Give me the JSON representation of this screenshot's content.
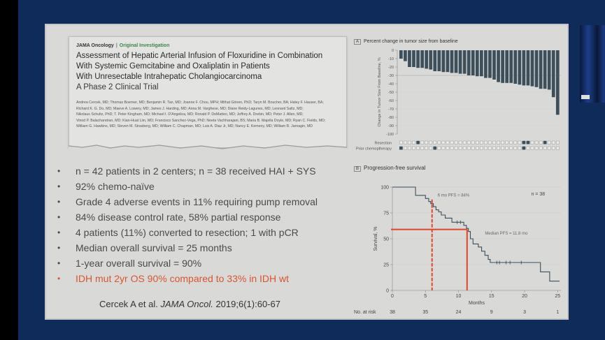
{
  "article": {
    "journal": "JAMA Oncology",
    "article_type": "Original Investigation",
    "title_lines": [
      "Assessment of Hepatic Arterial Infusion of Floxuridine in Combination",
      "With Systemic Gemcitabine and Oxaliplatin in Patients",
      "With Unresectable Intrahepatic Cholangiocarcinoma"
    ],
    "subtitle": "A Phase 2 Clinical Trial",
    "authors_lines": [
      "Andrea Cercek, MD; Thomas Boerner, MD; Benjamin R. Tan, MD; Joanne F. Chou, MPH; Mithat Gönen, PhD; Taryn M. Boucher, BA; Haley F. Hauser, BA;",
      "Richard K. G. Do, MD; Maeve A. Lowery, MD; James J. Harding, MD; Anna M. Varghese, MD; Diane Reidy-Lagunes, MD; Leonard Saltz, MD;",
      "Nikolaus Schultz, PhD; T. Peter Kingham, MD; Michael I. D'Angelica, MD; Ronald P. DeMatteo, MD; Jeffrey A. Drebin, MD; Peter J. Allen, MD;",
      "Vinod P. Balachandran, MD; Kian-Huat Lim, MD; Francisco Sanchez-Vega, PhD; Neeta Vachharajani, BS; Maria B. Majella Doyle, MD; Ryan C. Fields, MD;",
      "William G. Hawkins, MD; Steven M. Strasberg, MD; William C. Chapman, MD; Luis A. Diaz Jr, MD; Nancy E. Kemeny, MD; William R. Jarnagin, MD"
    ]
  },
  "bullets": [
    {
      "text": "n = 42 patients in 2 centers; n = 38 received HAI + SYS",
      "highlight": false
    },
    {
      "text": "92% chemo-naïve",
      "highlight": false
    },
    {
      "text": "Grade 4 adverse events in 11% requiring pump removal",
      "highlight": false
    },
    {
      "text": "84% disease control rate, 58% partial response",
      "highlight": false
    },
    {
      "text": "4 patients (11%) converted to resection; 1 with pCR",
      "highlight": false
    },
    {
      "text": "Median overall survival = 25 months",
      "highlight": false
    },
    {
      "text": "1-year overall survival = 90%",
      "highlight": false
    },
    {
      "text": "IDH mut 2yr OS 90% compared to 33% in IDH wt",
      "highlight": true
    }
  ],
  "bullet_glyph": "•",
  "citation": {
    "authors": "Cercek A et al.",
    "journal": "JAMA Oncol.",
    "ref": "2019;6(1):60-67"
  },
  "colors": {
    "highlight": "#d8552e",
    "bar": "#3d4f5a",
    "km_line": "#3d4f5a",
    "annotation_red": "#e0452a",
    "background_blue": "#0e2b5a"
  },
  "chart_data": [
    {
      "type": "bar",
      "panel_label": "A",
      "title": "Percent change in tumor size from baseline",
      "ylabel": "Change in Tumor Size From Baseline, %",
      "ylim": [
        -100,
        0
      ],
      "yticks": [
        0,
        -10,
        -20,
        -30,
        -40,
        -50,
        -60,
        -70,
        -80,
        -90,
        -100
      ],
      "reference_line": -30,
      "values": [
        -10,
        -13,
        -20,
        -20,
        -21,
        -21,
        -22,
        -23,
        -25,
        -25,
        -26,
        -26,
        -27,
        -27,
        -28,
        -28,
        -30,
        -30,
        -31,
        -31,
        -33,
        -33,
        -35,
        -38,
        -39,
        -39,
        -39,
        -40,
        -41,
        -42,
        -42,
        -43,
        -44,
        -46,
        -46,
        -47,
        -56,
        -77
      ],
      "indicator_rows": [
        {
          "label": "Resection",
          "filled": [
            4,
            29,
            30,
            34
          ]
        },
        {
          "label": "Prior chemoptherapy",
          "filled": [
            0,
            8,
            29
          ]
        }
      ]
    },
    {
      "type": "line",
      "panel_label": "B",
      "title": "Progression-free survival",
      "xlabel": "Months",
      "ylabel": "Survival, %",
      "xlim": [
        0,
        25.5
      ],
      "ylim": [
        0,
        100
      ],
      "xticks": [
        0,
        5,
        10,
        15,
        20,
        25
      ],
      "yticks": [
        0,
        25,
        50,
        75,
        100
      ],
      "n_label": "n = 38",
      "series": [
        {
          "name": "PFS",
          "x": [
            0,
            3.5,
            3.5,
            5.0,
            5.0,
            5.5,
            5.5,
            5.8,
            5.8,
            6.2,
            6.2,
            6.6,
            6.6,
            7.0,
            7.0,
            7.4,
            7.4,
            8.0,
            8.0,
            9.0,
            9.0,
            10.8,
            10.8,
            11.2,
            11.2,
            11.5,
            11.5,
            11.8,
            11.8,
            12.2,
            12.2,
            13.0,
            13.0,
            13.5,
            13.5,
            14.0,
            14.0,
            14.5,
            14.5,
            14.8,
            14.8,
            22.4,
            22.4,
            23.8,
            23.8,
            25.3
          ],
          "y": [
            100,
            100,
            92,
            92,
            89,
            89,
            86,
            86,
            84,
            84,
            81,
            81,
            78,
            78,
            76,
            76,
            73,
            73,
            70,
            70,
            66,
            66,
            63,
            63,
            60,
            60,
            57,
            57,
            50,
            50,
            45,
            45,
            42,
            42,
            38,
            38,
            34,
            34,
            30,
            30,
            27,
            27,
            18,
            18,
            9,
            9
          ]
        }
      ],
      "censor_marks": [
        {
          "x": 9.8,
          "y": 66
        },
        {
          "x": 10.3,
          "y": 66
        },
        {
          "x": 15.8,
          "y": 27
        },
        {
          "x": 16.2,
          "y": 27
        },
        {
          "x": 17.2,
          "y": 27
        },
        {
          "x": 17.8,
          "y": 27
        },
        {
          "x": 19.5,
          "y": 27
        }
      ],
      "annotations": [
        {
          "text": "6 mo PFS = 84%",
          "x": 6,
          "y": 84,
          "style": "dashed-red-vertical"
        },
        {
          "text": "Median PFS = 11.8 mo",
          "x": 11.3,
          "y": 59,
          "style": "solid-red-elbow"
        }
      ],
      "risk_table": {
        "label": "No. at risk",
        "times": [
          0,
          5,
          10,
          15,
          20,
          25
        ],
        "counts": [
          38,
          35,
          24,
          9,
          3,
          1
        ]
      }
    }
  ]
}
